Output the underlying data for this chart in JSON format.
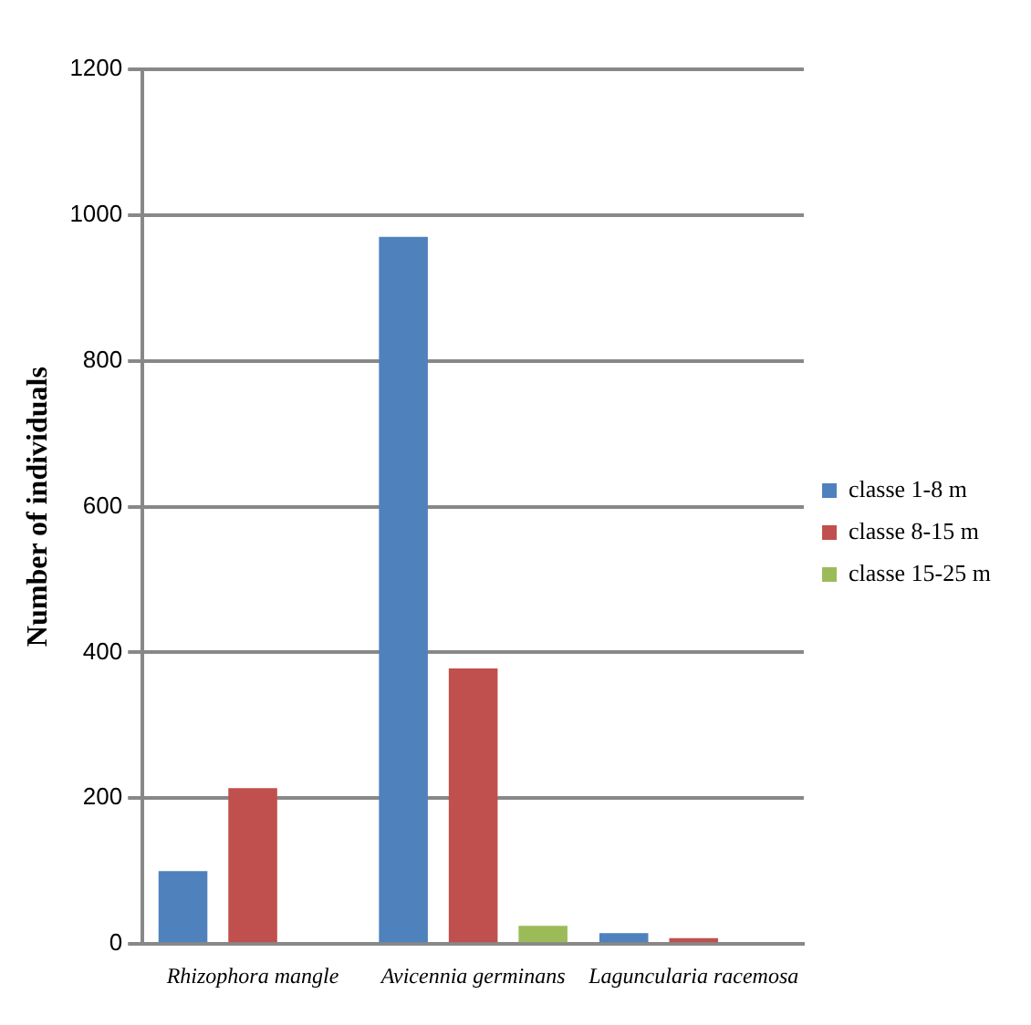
{
  "chart_data": {
    "type": "bar",
    "ylabel": "Number of individuals",
    "categories": [
      "Rhizophora mangle",
      "Avicennia germinans",
      "Laguncularia racemosa"
    ],
    "series": [
      {
        "name": "classe 1-8 m",
        "color": "#4f81bd",
        "values": [
          100,
          970,
          15
        ]
      },
      {
        "name": "classe 8-15 m",
        "color": "#c0504d",
        "values": [
          214,
          378,
          8
        ]
      },
      {
        "name": "classe 15-25 m",
        "color": "#9bbb59",
        "values": [
          0,
          25,
          0
        ]
      }
    ],
    "ylim": [
      0,
      1200
    ],
    "yticks": [
      0,
      200,
      400,
      600,
      800,
      1000,
      1200
    ],
    "grid": "y",
    "legend": "right"
  }
}
